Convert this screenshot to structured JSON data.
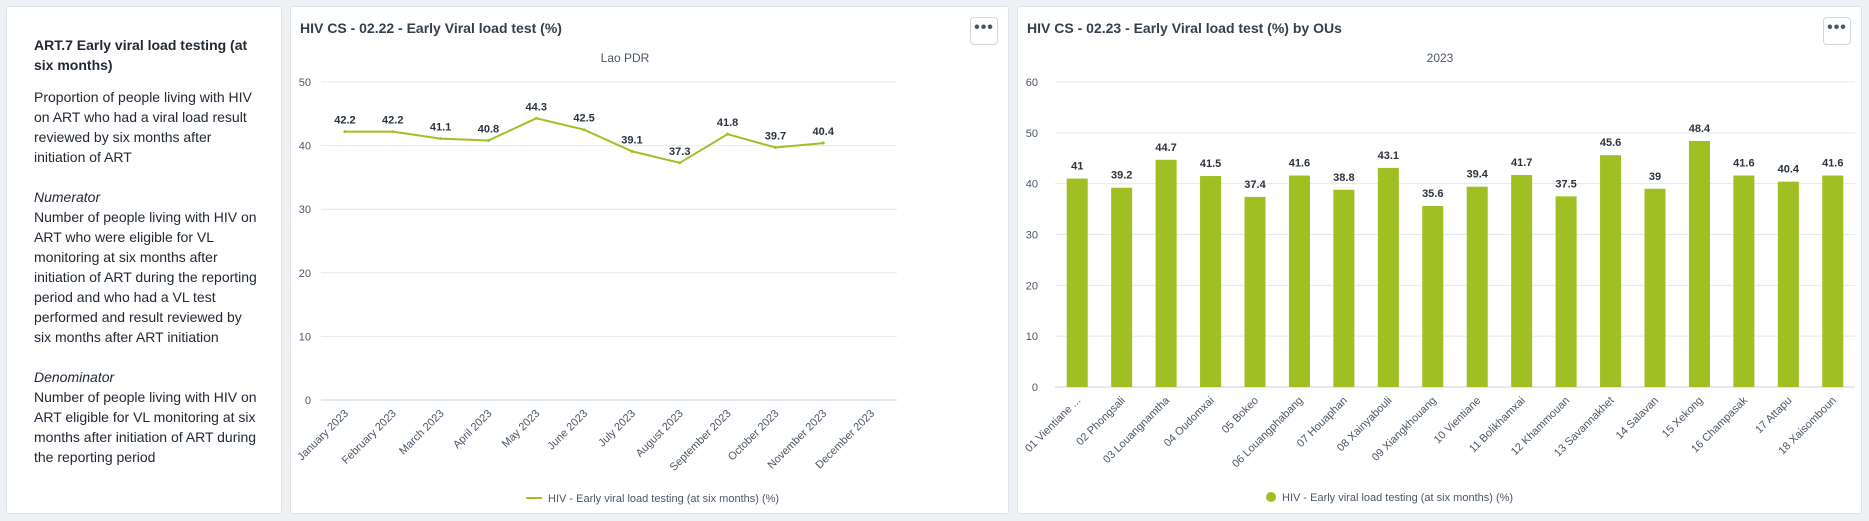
{
  "info_panel": {
    "title": "ART.7 Early viral load testing (at six months)",
    "description": "Proportion of people living with HIV on ART who had a viral load result reviewed by six months after initiation of ART",
    "numerator_label": "Numerator",
    "numerator_text": "Number of people living with HIV on ART who were eligible for VL monitoring at six months after initiation of ART during the reporting period and who had a VL test performed and result reviewed by six months after ART initiation",
    "denominator_label": "Denominator",
    "denominator_text": "Number of people living with HIV on ART eligible for VL monitoring at six months after initiation of ART during the reporting period"
  },
  "menu_icon": "more-horizontal-icon",
  "colors": {
    "series": "#a0bf23",
    "grid": "#e4e7eb",
    "axis_text": "#4a5768"
  },
  "chart_data": [
    {
      "type": "line",
      "panel_title": "HIV CS - 02.22 - Early Viral load test (%)",
      "title": "Lao PDR",
      "categories": [
        "January 2023",
        "February 2023",
        "March 2023",
        "April 2023",
        "May 2023",
        "June 2023",
        "July 2023",
        "August 2023",
        "September 2023",
        "October 2023",
        "November 2023",
        "December 2023"
      ],
      "series": [
        {
          "name": "HIV - Early viral load testing (at six months) (%)",
          "values": [
            42.2,
            42.2,
            41.1,
            40.8,
            44.3,
            42.5,
            39.1,
            37.3,
            41.8,
            39.7,
            40.4,
            null
          ]
        }
      ],
      "ylim": [
        0,
        50
      ],
      "yticks": [
        0,
        10,
        20,
        30,
        40,
        50
      ],
      "grid": true,
      "legend": "bottom"
    },
    {
      "type": "bar",
      "panel_title": "HIV CS - 02.23 - Early Viral load test (%) by OUs",
      "title": "2023",
      "categories": [
        "01 Vientiane ...",
        "02 Phongsali",
        "03 Louangnamtha",
        "04 Oudomxai",
        "05 Bokeo",
        "06 Louangphabang",
        "07 Houaphan",
        "08 Xainyabouli",
        "09 Xiangkhouang",
        "10 Vientiane",
        "11 Bolikhamxai",
        "12 Khammouan",
        "13 Savannakhet",
        "14 Salavan",
        "15 Xekong",
        "16 Champasak",
        "17 Attapu",
        "18 Xaisomboun"
      ],
      "series": [
        {
          "name": "HIV - Early viral load testing (at six months) (%)",
          "values": [
            41,
            39.2,
            44.7,
            41.5,
            37.4,
            41.6,
            38.8,
            43.1,
            35.6,
            39.4,
            41.7,
            37.5,
            45.6,
            39,
            48.4,
            41.6,
            40.4,
            41.6
          ]
        }
      ],
      "ylim": [
        0,
        60
      ],
      "yticks": [
        0,
        10,
        20,
        30,
        40,
        50,
        60
      ],
      "grid": true,
      "legend": "bottom"
    }
  ]
}
